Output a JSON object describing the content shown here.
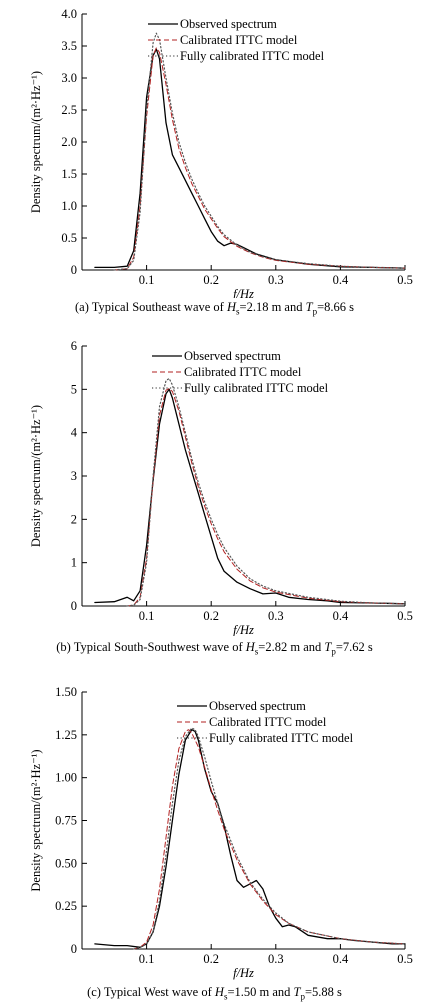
{
  "figure": {
    "series_styles": [
      {
        "name": "Observed spectrum",
        "color": "#000000",
        "dash": "",
        "width": 1.3
      },
      {
        "name": "Calibrated ITTC model",
        "color": "#b22222",
        "dash": "5,3",
        "width": 1.0
      },
      {
        "name": "Fully calibrated ITTC model",
        "color": "#555555",
        "dash": "1.2,2.4",
        "width": 1.2
      }
    ]
  },
  "chart_data": [
    {
      "type": "line",
      "caption": {
        "prefix": "(a) Typical Southeast wave of ",
        "hs_sym": "H",
        "hs_sub": "s",
        "hs_val": "=2.18 m and ",
        "tp_sym": "T",
        "tp_sub": "p",
        "tp_val": "=8.66 s"
      },
      "xlabel": "f/Hz",
      "ylabel": "Density spectrum/(m²·Hz⁻¹)",
      "xlim": [
        0.0,
        0.5
      ],
      "ylim": [
        0,
        4.0
      ],
      "xticks": [
        0.1,
        0.2,
        0.3,
        0.4,
        0.5
      ],
      "xtick_labels": [
        "0.1",
        "0.2",
        "0.3",
        "0.4",
        "0.5"
      ],
      "yticks": [
        0,
        0.5,
        1.0,
        1.5,
        2.0,
        2.5,
        3.0,
        3.5,
        4.0
      ],
      "ytick_labels": [
        "0",
        "0.5",
        "1.0",
        "1.5",
        "2.0",
        "2.5",
        "3.0",
        "3.5",
        "4.0"
      ],
      "legend": "top-right",
      "series": [
        {
          "name": "Observed spectrum",
          "x": [
            0.02,
            0.05,
            0.07,
            0.08,
            0.09,
            0.1,
            0.11,
            0.115,
            0.12,
            0.13,
            0.14,
            0.15,
            0.16,
            0.17,
            0.18,
            0.19,
            0.2,
            0.21,
            0.22,
            0.23,
            0.24,
            0.25,
            0.27,
            0.3,
            0.35,
            0.4,
            0.45,
            0.5
          ],
          "y": [
            0.04,
            0.04,
            0.06,
            0.3,
            1.2,
            2.7,
            3.35,
            3.45,
            3.3,
            2.3,
            1.8,
            1.6,
            1.4,
            1.2,
            1.0,
            0.8,
            0.6,
            0.45,
            0.38,
            0.42,
            0.4,
            0.35,
            0.25,
            0.16,
            0.09,
            0.05,
            0.04,
            0.03
          ]
        },
        {
          "name": "Calibrated ITTC model",
          "x": [
            0.05,
            0.07,
            0.08,
            0.09,
            0.1,
            0.11,
            0.115,
            0.12,
            0.13,
            0.14,
            0.15,
            0.16,
            0.17,
            0.18,
            0.19,
            0.2,
            0.21,
            0.22,
            0.24,
            0.26,
            0.28,
            0.3,
            0.35,
            0.4,
            0.45,
            0.5
          ],
          "y": [
            0.0,
            0.02,
            0.2,
            1.0,
            2.4,
            3.35,
            3.47,
            3.4,
            2.9,
            2.35,
            1.9,
            1.6,
            1.35,
            1.15,
            0.95,
            0.8,
            0.65,
            0.52,
            0.37,
            0.27,
            0.2,
            0.15,
            0.09,
            0.06,
            0.04,
            0.03
          ]
        },
        {
          "name": "Fully calibrated ITTC model",
          "x": [
            0.05,
            0.07,
            0.08,
            0.09,
            0.1,
            0.11,
            0.115,
            0.12,
            0.13,
            0.14,
            0.15,
            0.16,
            0.17,
            0.18,
            0.19,
            0.2,
            0.21,
            0.22,
            0.24,
            0.26,
            0.28,
            0.3,
            0.35,
            0.4,
            0.45,
            0.5
          ],
          "y": [
            0.0,
            0.02,
            0.15,
            0.9,
            2.5,
            3.55,
            3.7,
            3.6,
            3.0,
            2.45,
            2.0,
            1.68,
            1.42,
            1.2,
            1.0,
            0.84,
            0.68,
            0.55,
            0.39,
            0.28,
            0.21,
            0.16,
            0.1,
            0.06,
            0.04,
            0.03
          ]
        }
      ]
    },
    {
      "type": "line",
      "caption": {
        "prefix": "(b) Typical South-Southwest wave of ",
        "hs_sym": "H",
        "hs_sub": "s",
        "hs_val": "=2.82 m and ",
        "tp_sym": "T",
        "tp_sub": "p",
        "tp_val": "=7.62 s"
      },
      "xlabel": "f/Hz",
      "ylabel": "Density spectrum/(m²·Hz⁻¹)",
      "xlim": [
        0.0,
        0.5
      ],
      "ylim": [
        0,
        6
      ],
      "xticks": [
        0.1,
        0.2,
        0.3,
        0.4,
        0.5
      ],
      "xtick_labels": [
        "0.1",
        "0.2",
        "0.3",
        "0.4",
        "0.5"
      ],
      "yticks": [
        0,
        1,
        2,
        3,
        4,
        5,
        6
      ],
      "ytick_labels": [
        "0",
        "1",
        "2",
        "3",
        "4",
        "5",
        "6"
      ],
      "legend": "top-right",
      "series": [
        {
          "name": "Observed spectrum",
          "x": [
            0.02,
            0.05,
            0.07,
            0.08,
            0.09,
            0.1,
            0.11,
            0.12,
            0.13,
            0.135,
            0.14,
            0.15,
            0.16,
            0.17,
            0.18,
            0.19,
            0.2,
            0.21,
            0.22,
            0.24,
            0.26,
            0.28,
            0.3,
            0.32,
            0.35,
            0.38,
            0.4,
            0.45,
            0.5
          ],
          "y": [
            0.08,
            0.1,
            0.2,
            0.12,
            0.35,
            1.4,
            2.9,
            4.2,
            4.9,
            5.0,
            4.8,
            4.2,
            3.6,
            3.1,
            2.6,
            2.1,
            1.6,
            1.1,
            0.8,
            0.55,
            0.4,
            0.28,
            0.3,
            0.2,
            0.15,
            0.12,
            0.08,
            0.07,
            0.05
          ]
        },
        {
          "name": "Calibrated ITTC model",
          "x": [
            0.07,
            0.08,
            0.09,
            0.1,
            0.11,
            0.12,
            0.13,
            0.135,
            0.14,
            0.15,
            0.16,
            0.17,
            0.18,
            0.19,
            0.2,
            0.21,
            0.22,
            0.24,
            0.26,
            0.28,
            0.3,
            0.35,
            0.4,
            0.45,
            0.5
          ],
          "y": [
            0.0,
            0.02,
            0.2,
            1.1,
            2.9,
            4.4,
            4.98,
            5.02,
            4.95,
            4.5,
            3.9,
            3.3,
            2.75,
            2.3,
            1.9,
            1.55,
            1.25,
            0.85,
            0.58,
            0.42,
            0.32,
            0.18,
            0.1,
            0.07,
            0.05
          ]
        },
        {
          "name": "Fully calibrated ITTC model",
          "x": [
            0.07,
            0.08,
            0.09,
            0.1,
            0.11,
            0.12,
            0.13,
            0.135,
            0.14,
            0.15,
            0.16,
            0.17,
            0.18,
            0.19,
            0.2,
            0.21,
            0.22,
            0.24,
            0.26,
            0.28,
            0.3,
            0.35,
            0.4,
            0.45,
            0.5
          ],
          "y": [
            0.0,
            0.02,
            0.15,
            1.0,
            3.0,
            4.6,
            5.2,
            5.25,
            5.1,
            4.6,
            4.0,
            3.4,
            2.85,
            2.4,
            2.0,
            1.65,
            1.35,
            0.92,
            0.63,
            0.46,
            0.35,
            0.2,
            0.11,
            0.07,
            0.05
          ]
        }
      ]
    },
    {
      "type": "line",
      "caption": {
        "prefix": "(c) Typical West wave of ",
        "hs_sym": "H",
        "hs_sub": "s",
        "hs_val": "=1.50 m and ",
        "tp_sym": "T",
        "tp_sub": "p",
        "tp_val": "=5.88 s"
      },
      "xlabel": "f/Hz",
      "ylabel": "Density spectrum/(m²·Hz⁻¹)",
      "xlim": [
        0.0,
        0.5
      ],
      "ylim": [
        0,
        1.5
      ],
      "xticks": [
        0.1,
        0.2,
        0.3,
        0.4,
        0.5
      ],
      "xtick_labels": [
        "0.1",
        "0.2",
        "0.3",
        "0.4",
        "0.5"
      ],
      "yticks": [
        0,
        0.25,
        0.5,
        0.75,
        1.0,
        1.25,
        1.5
      ],
      "ytick_labels": [
        "0",
        "0.25",
        "0.50",
        "0.75",
        "1.00",
        "1.25",
        "1.50"
      ],
      "legend": "top-right",
      "series": [
        {
          "name": "Observed spectrum",
          "x": [
            0.02,
            0.05,
            0.07,
            0.09,
            0.1,
            0.11,
            0.12,
            0.13,
            0.14,
            0.15,
            0.16,
            0.17,
            0.175,
            0.18,
            0.19,
            0.2,
            0.21,
            0.22,
            0.23,
            0.24,
            0.25,
            0.26,
            0.27,
            0.28,
            0.29,
            0.3,
            0.31,
            0.32,
            0.33,
            0.35,
            0.38,
            0.4,
            0.42,
            0.45,
            0.48,
            0.5
          ],
          "y": [
            0.03,
            0.02,
            0.02,
            0.01,
            0.03,
            0.1,
            0.25,
            0.48,
            0.75,
            1.02,
            1.22,
            1.28,
            1.27,
            1.22,
            1.05,
            0.92,
            0.85,
            0.72,
            0.55,
            0.4,
            0.36,
            0.38,
            0.4,
            0.35,
            0.25,
            0.18,
            0.13,
            0.14,
            0.13,
            0.08,
            0.06,
            0.06,
            0.05,
            0.04,
            0.03,
            0.03
          ]
        },
        {
          "name": "Calibrated ITTC model",
          "x": [
            0.08,
            0.09,
            0.1,
            0.11,
            0.12,
            0.13,
            0.14,
            0.15,
            0.16,
            0.165,
            0.17,
            0.18,
            0.19,
            0.2,
            0.21,
            0.22,
            0.24,
            0.26,
            0.28,
            0.3,
            0.32,
            0.35,
            0.4,
            0.45,
            0.5
          ],
          "y": [
            0.0,
            0.01,
            0.04,
            0.14,
            0.35,
            0.65,
            0.95,
            1.17,
            1.27,
            1.28,
            1.26,
            1.18,
            1.06,
            0.93,
            0.81,
            0.7,
            0.52,
            0.38,
            0.28,
            0.2,
            0.15,
            0.1,
            0.06,
            0.04,
            0.03
          ]
        },
        {
          "name": "Fully calibrated ITTC model",
          "x": [
            0.08,
            0.09,
            0.1,
            0.11,
            0.12,
            0.13,
            0.14,
            0.15,
            0.16,
            0.17,
            0.175,
            0.18,
            0.19,
            0.2,
            0.21,
            0.22,
            0.24,
            0.26,
            0.28,
            0.3,
            0.32,
            0.35,
            0.4,
            0.45,
            0.5
          ],
          "y": [
            0.0,
            0.01,
            0.03,
            0.1,
            0.28,
            0.55,
            0.85,
            1.1,
            1.24,
            1.29,
            1.28,
            1.24,
            1.12,
            0.98,
            0.85,
            0.73,
            0.54,
            0.39,
            0.29,
            0.21,
            0.15,
            0.1,
            0.06,
            0.04,
            0.03
          ]
        }
      ]
    }
  ]
}
